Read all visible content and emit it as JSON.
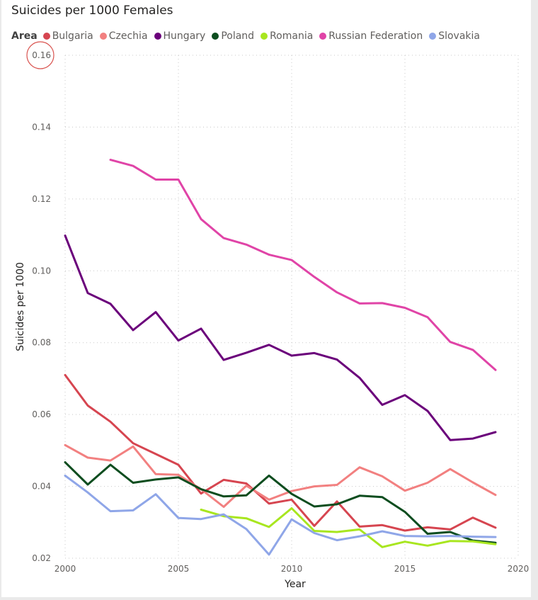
{
  "title": "Suicides per 1000 Females",
  "legend": {
    "title": "Area"
  },
  "chart_data": {
    "type": "line",
    "title": "Suicides per 1000 Females",
    "xlabel": "Year",
    "ylabel": "Suicides per 1000",
    "xlim": [
      2000,
      2020
    ],
    "ylim": [
      0.02,
      0.16
    ],
    "xticks": [
      2000,
      2005,
      2010,
      2015,
      2020
    ],
    "yticks": [
      0.02,
      0.04,
      0.06,
      0.08,
      0.1,
      0.12,
      0.14,
      0.16
    ],
    "ytick_labels": [
      "0.02",
      "0.04",
      "0.06",
      "0.08",
      "0.10",
      "0.12",
      "0.14",
      "0.16"
    ],
    "grid": true,
    "legend_position": "top-left",
    "series": [
      {
        "name": "Bulgaria",
        "color": "#d64550",
        "x": [
          2000,
          2001,
          2002,
          2003,
          2004,
          2005,
          2006,
          2007,
          2008,
          2009,
          2010,
          2011,
          2012,
          2013,
          2014,
          2015,
          2016,
          2017,
          2018,
          2019
        ],
        "y": [
          0.071,
          0.0625,
          0.058,
          0.052,
          0.049,
          0.046,
          0.038,
          0.0418,
          0.0408,
          0.0352,
          0.0363,
          0.029,
          0.0358,
          0.0288,
          0.0292,
          0.0277,
          0.0286,
          0.028,
          0.0313,
          0.0285
        ]
      },
      {
        "name": "Czechia",
        "color": "#f28080",
        "x": [
          2000,
          2001,
          2002,
          2003,
          2004,
          2005,
          2006,
          2007,
          2008,
          2009,
          2010,
          2011,
          2012,
          2013,
          2014,
          2015,
          2016,
          2017,
          2018,
          2019
        ],
        "y": [
          0.0515,
          0.048,
          0.0472,
          0.0511,
          0.0434,
          0.0432,
          0.0392,
          0.0343,
          0.0402,
          0.0363,
          0.0387,
          0.04,
          0.0404,
          0.0453,
          0.0428,
          0.0388,
          0.041,
          0.0448,
          0.0411,
          0.0376
        ]
      },
      {
        "name": "Hungary",
        "color": "#6b007b",
        "x": [
          2000,
          2001,
          2002,
          2003,
          2004,
          2005,
          2006,
          2007,
          2008,
          2009,
          2010,
          2011,
          2012,
          2013,
          2014,
          2015,
          2016,
          2017,
          2018,
          2019
        ],
        "y": [
          0.1098,
          0.0938,
          0.0908,
          0.0835,
          0.0885,
          0.0806,
          0.0839,
          0.0752,
          0.0772,
          0.0794,
          0.0764,
          0.0771,
          0.0753,
          0.0702,
          0.0627,
          0.0654,
          0.061,
          0.0529,
          0.0533,
          0.0551
        ]
      },
      {
        "name": "Poland",
        "color": "#0d4d1f",
        "x": [
          2000,
          2001,
          2002,
          2003,
          2004,
          2005,
          2006,
          2007,
          2008,
          2009,
          2010,
          2011,
          2012,
          2013,
          2014,
          2015,
          2016,
          2017,
          2018,
          2019
        ],
        "y": [
          0.0467,
          0.0405,
          0.046,
          0.041,
          0.0419,
          0.0425,
          0.0392,
          0.0372,
          0.0375,
          0.043,
          0.0379,
          0.0344,
          0.035,
          0.0374,
          0.037,
          0.0329,
          0.0268,
          0.0273,
          0.0249,
          0.0243
        ]
      },
      {
        "name": "Romania",
        "color": "#a8e61f",
        "x": [
          2006,
          2007,
          2008,
          2009,
          2010,
          2011,
          2012,
          2013,
          2014,
          2015,
          2016,
          2017,
          2018,
          2019
        ],
        "y": [
          0.0335,
          0.0317,
          0.0311,
          0.0287,
          0.0339,
          0.0276,
          0.0273,
          0.028,
          0.0231,
          0.0246,
          0.0235,
          0.0248,
          0.0247,
          0.0239
        ]
      },
      {
        "name": "Russian Federation",
        "color": "#e044a7",
        "x": [
          2002,
          2003,
          2004,
          2005,
          2006,
          2007,
          2008,
          2009,
          2010,
          2011,
          2012,
          2013,
          2014,
          2015,
          2016,
          2017,
          2018,
          2019
        ],
        "y": [
          0.1309,
          0.1292,
          0.1254,
          0.1254,
          0.1144,
          0.1091,
          0.1073,
          0.1045,
          0.103,
          0.0983,
          0.094,
          0.0909,
          0.091,
          0.0897,
          0.0871,
          0.0802,
          0.078,
          0.0724
        ]
      },
      {
        "name": "Slovakia",
        "color": "#8fa6e8",
        "x": [
          2000,
          2001,
          2002,
          2003,
          2004,
          2005,
          2006,
          2007,
          2008,
          2009,
          2010,
          2011,
          2012,
          2013,
          2014,
          2015,
          2016,
          2017,
          2018,
          2019
        ],
        "y": [
          0.043,
          0.0383,
          0.0331,
          0.0333,
          0.0378,
          0.0312,
          0.0309,
          0.0322,
          0.0281,
          0.021,
          0.0308,
          0.027,
          0.025,
          0.0261,
          0.0275,
          0.0262,
          0.0261,
          0.0262,
          0.026,
          0.0259
        ]
      }
    ]
  }
}
